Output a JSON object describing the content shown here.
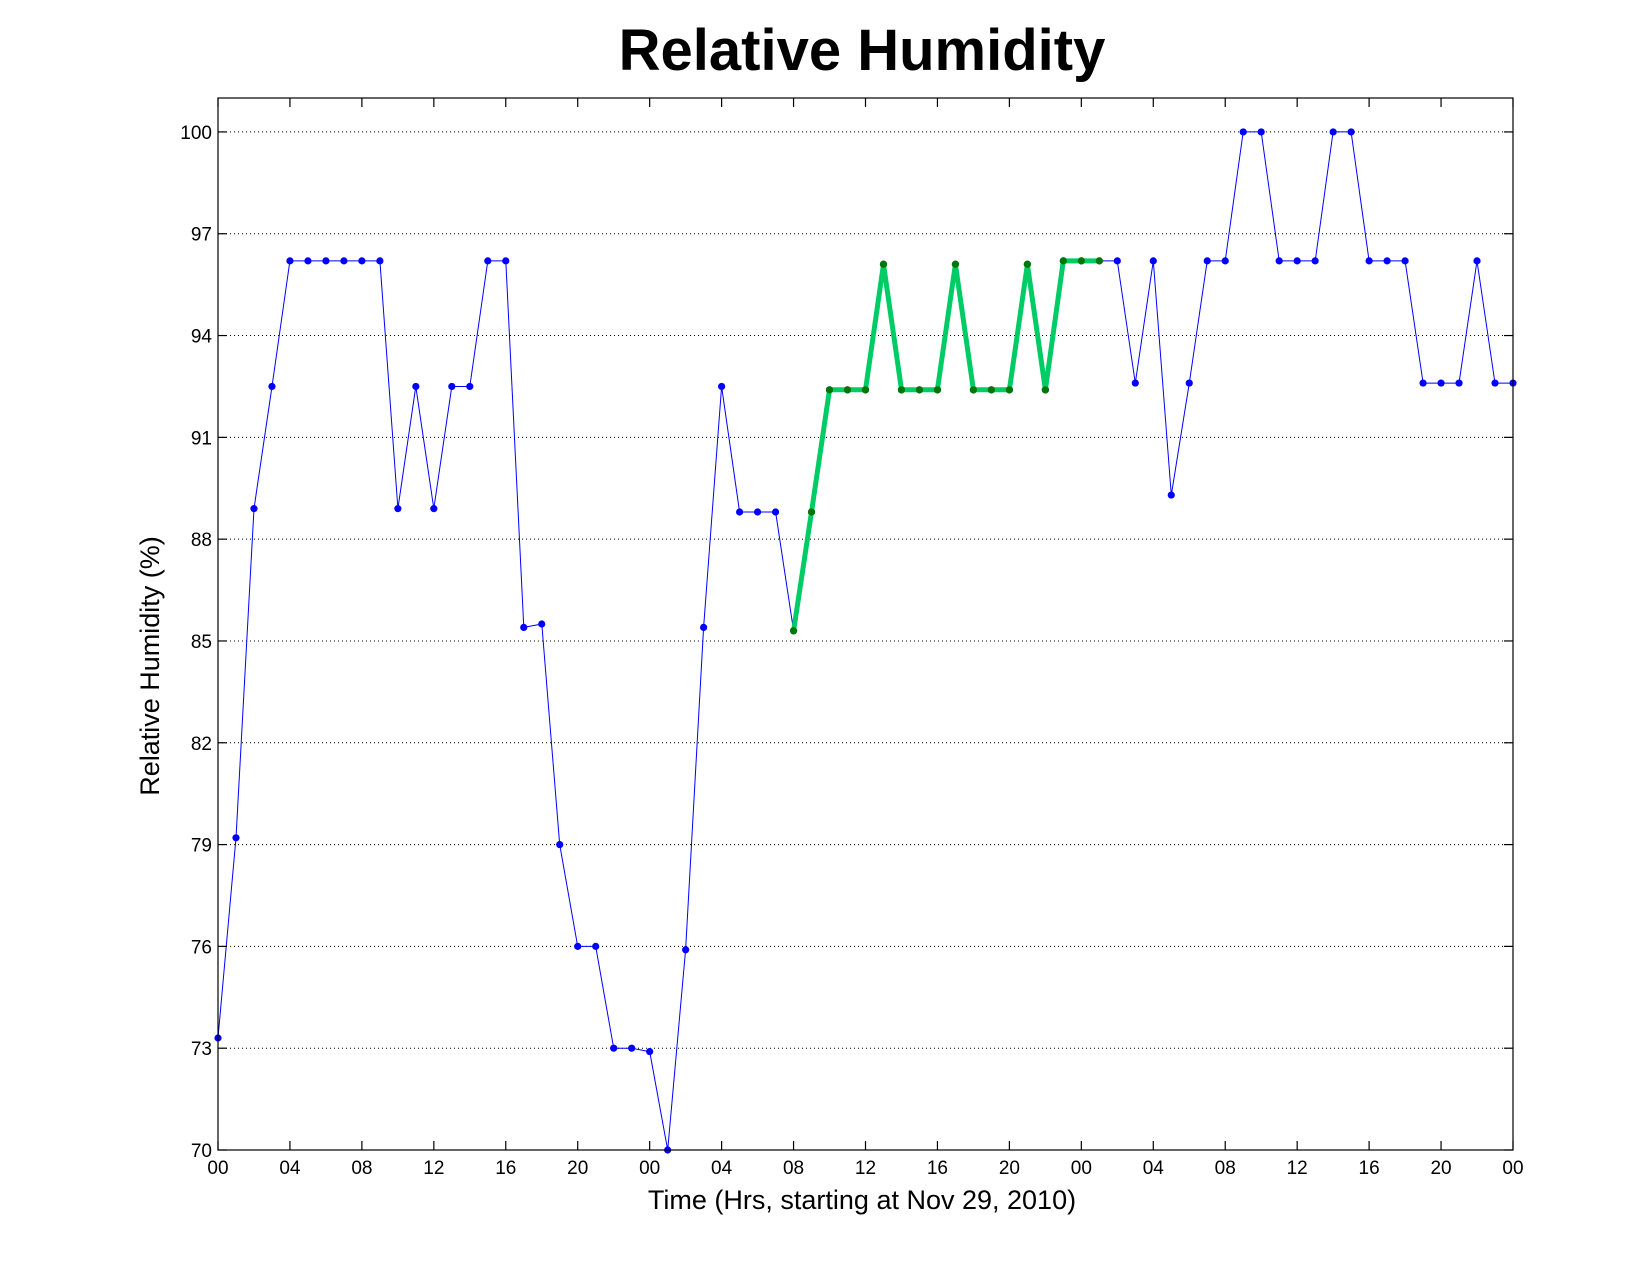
{
  "chart_data": {
    "type": "line",
    "title": "Relative Humidity",
    "xlabel": "Time (Hrs, starting at Nov 29, 2010)",
    "ylabel": "Relative Humidity (%)",
    "xlim": [
      0,
      72
    ],
    "ylim": [
      70,
      101
    ],
    "grid": "horizontal dotted",
    "x_ticks": [
      0,
      4,
      8,
      12,
      16,
      20,
      24,
      28,
      32,
      36,
      40,
      44,
      48,
      52,
      56,
      60,
      64,
      68,
      72
    ],
    "x_tick_labels": [
      "00",
      "04",
      "08",
      "12",
      "16",
      "20",
      "00",
      "04",
      "08",
      "12",
      "16",
      "20",
      "00",
      "04",
      "08",
      "12",
      "16",
      "20",
      "00"
    ],
    "y_ticks": [
      70,
      73,
      76,
      79,
      82,
      85,
      88,
      91,
      94,
      97,
      100
    ],
    "y_tick_labels": [
      "70",
      "73",
      "76",
      "79",
      "82",
      "85",
      "88",
      "91",
      "94",
      "97",
      "100"
    ],
    "series": [
      {
        "color": "#0000ff",
        "marker_color": "#0000ff",
        "line_width": 1,
        "x": [
          0,
          1,
          2,
          3,
          4,
          5,
          6,
          7,
          8,
          9,
          10,
          11,
          12,
          13,
          14,
          15,
          16,
          17,
          18,
          19,
          20,
          21,
          22,
          23,
          24,
          25,
          26,
          27,
          28,
          29,
          30,
          31,
          32,
          33,
          34,
          35,
          36,
          37,
          38,
          39,
          40,
          41,
          42,
          43,
          44,
          45,
          46,
          47,
          48,
          49,
          50,
          51,
          52,
          53,
          54,
          55,
          56,
          57,
          58,
          59,
          60,
          61,
          62,
          63,
          64,
          65,
          66,
          67,
          68,
          69,
          70,
          71,
          72
        ],
        "values": [
          73.3,
          79.2,
          88.9,
          92.5,
          96.2,
          96.2,
          96.2,
          96.2,
          96.2,
          96.2,
          88.9,
          92.5,
          88.9,
          92.5,
          92.5,
          96.2,
          96.2,
          85.4,
          85.5,
          79.0,
          76.0,
          76.0,
          73.0,
          73.0,
          72.9,
          70.0,
          75.9,
          85.4,
          92.5,
          88.8,
          88.8,
          88.8,
          85.3,
          88.8,
          92.4,
          92.4,
          92.4,
          96.1,
          92.4,
          92.4,
          92.4,
          96.1,
          92.4,
          92.4,
          92.4,
          96.1,
          92.4,
          96.2,
          96.2,
          96.2,
          96.2,
          92.6,
          96.2,
          89.3,
          92.6,
          96.2,
          96.2,
          100.0,
          100.0,
          96.2,
          96.2,
          96.2,
          100.0,
          100.0,
          96.2,
          96.2,
          96.2,
          92.6,
          92.6,
          92.6,
          96.2,
          92.6,
          92.6
        ]
      },
      {
        "color": "#00cc66",
        "marker_color": "#007700",
        "line_width": 5,
        "x": [
          32,
          33,
          34,
          35,
          36,
          37,
          38,
          39,
          40,
          41,
          42,
          43,
          44,
          45,
          46,
          47,
          48,
          49
        ],
        "values": [
          85.3,
          88.8,
          92.4,
          92.4,
          92.4,
          96.1,
          92.4,
          92.4,
          92.4,
          96.1,
          92.4,
          92.4,
          92.4,
          96.1,
          92.4,
          96.2,
          96.2,
          96.2
        ]
      }
    ]
  }
}
